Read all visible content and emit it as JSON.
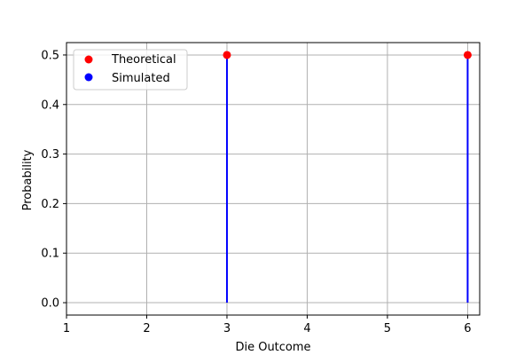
{
  "chart_data": {
    "type": "scatter",
    "title": "",
    "xlabel": "Die Outcome",
    "ylabel": "Probability",
    "xlim": [
      1,
      6.15
    ],
    "ylim": [
      -0.025,
      0.525
    ],
    "xticks": [
      1,
      2,
      3,
      4,
      5,
      6
    ],
    "yticks": [
      0.0,
      0.1,
      0.2,
      0.3,
      0.4,
      0.5
    ],
    "xtick_labels": [
      "1",
      "2",
      "3",
      "4",
      "5",
      "6"
    ],
    "ytick_labels": [
      "0.0",
      "0.1",
      "0.2",
      "0.3",
      "0.4",
      "0.5"
    ],
    "grid": true,
    "legend_placement": "top-left",
    "series": [
      {
        "name": "Theoretical",
        "style": "points",
        "color": "#ff0000",
        "x": [
          3,
          6
        ],
        "y": [
          0.5,
          0.5
        ]
      },
      {
        "name": "Simulated",
        "style": "stems",
        "color": "#0000ff",
        "x": [
          3,
          6
        ],
        "y": [
          0.5,
          0.5
        ]
      }
    ]
  }
}
